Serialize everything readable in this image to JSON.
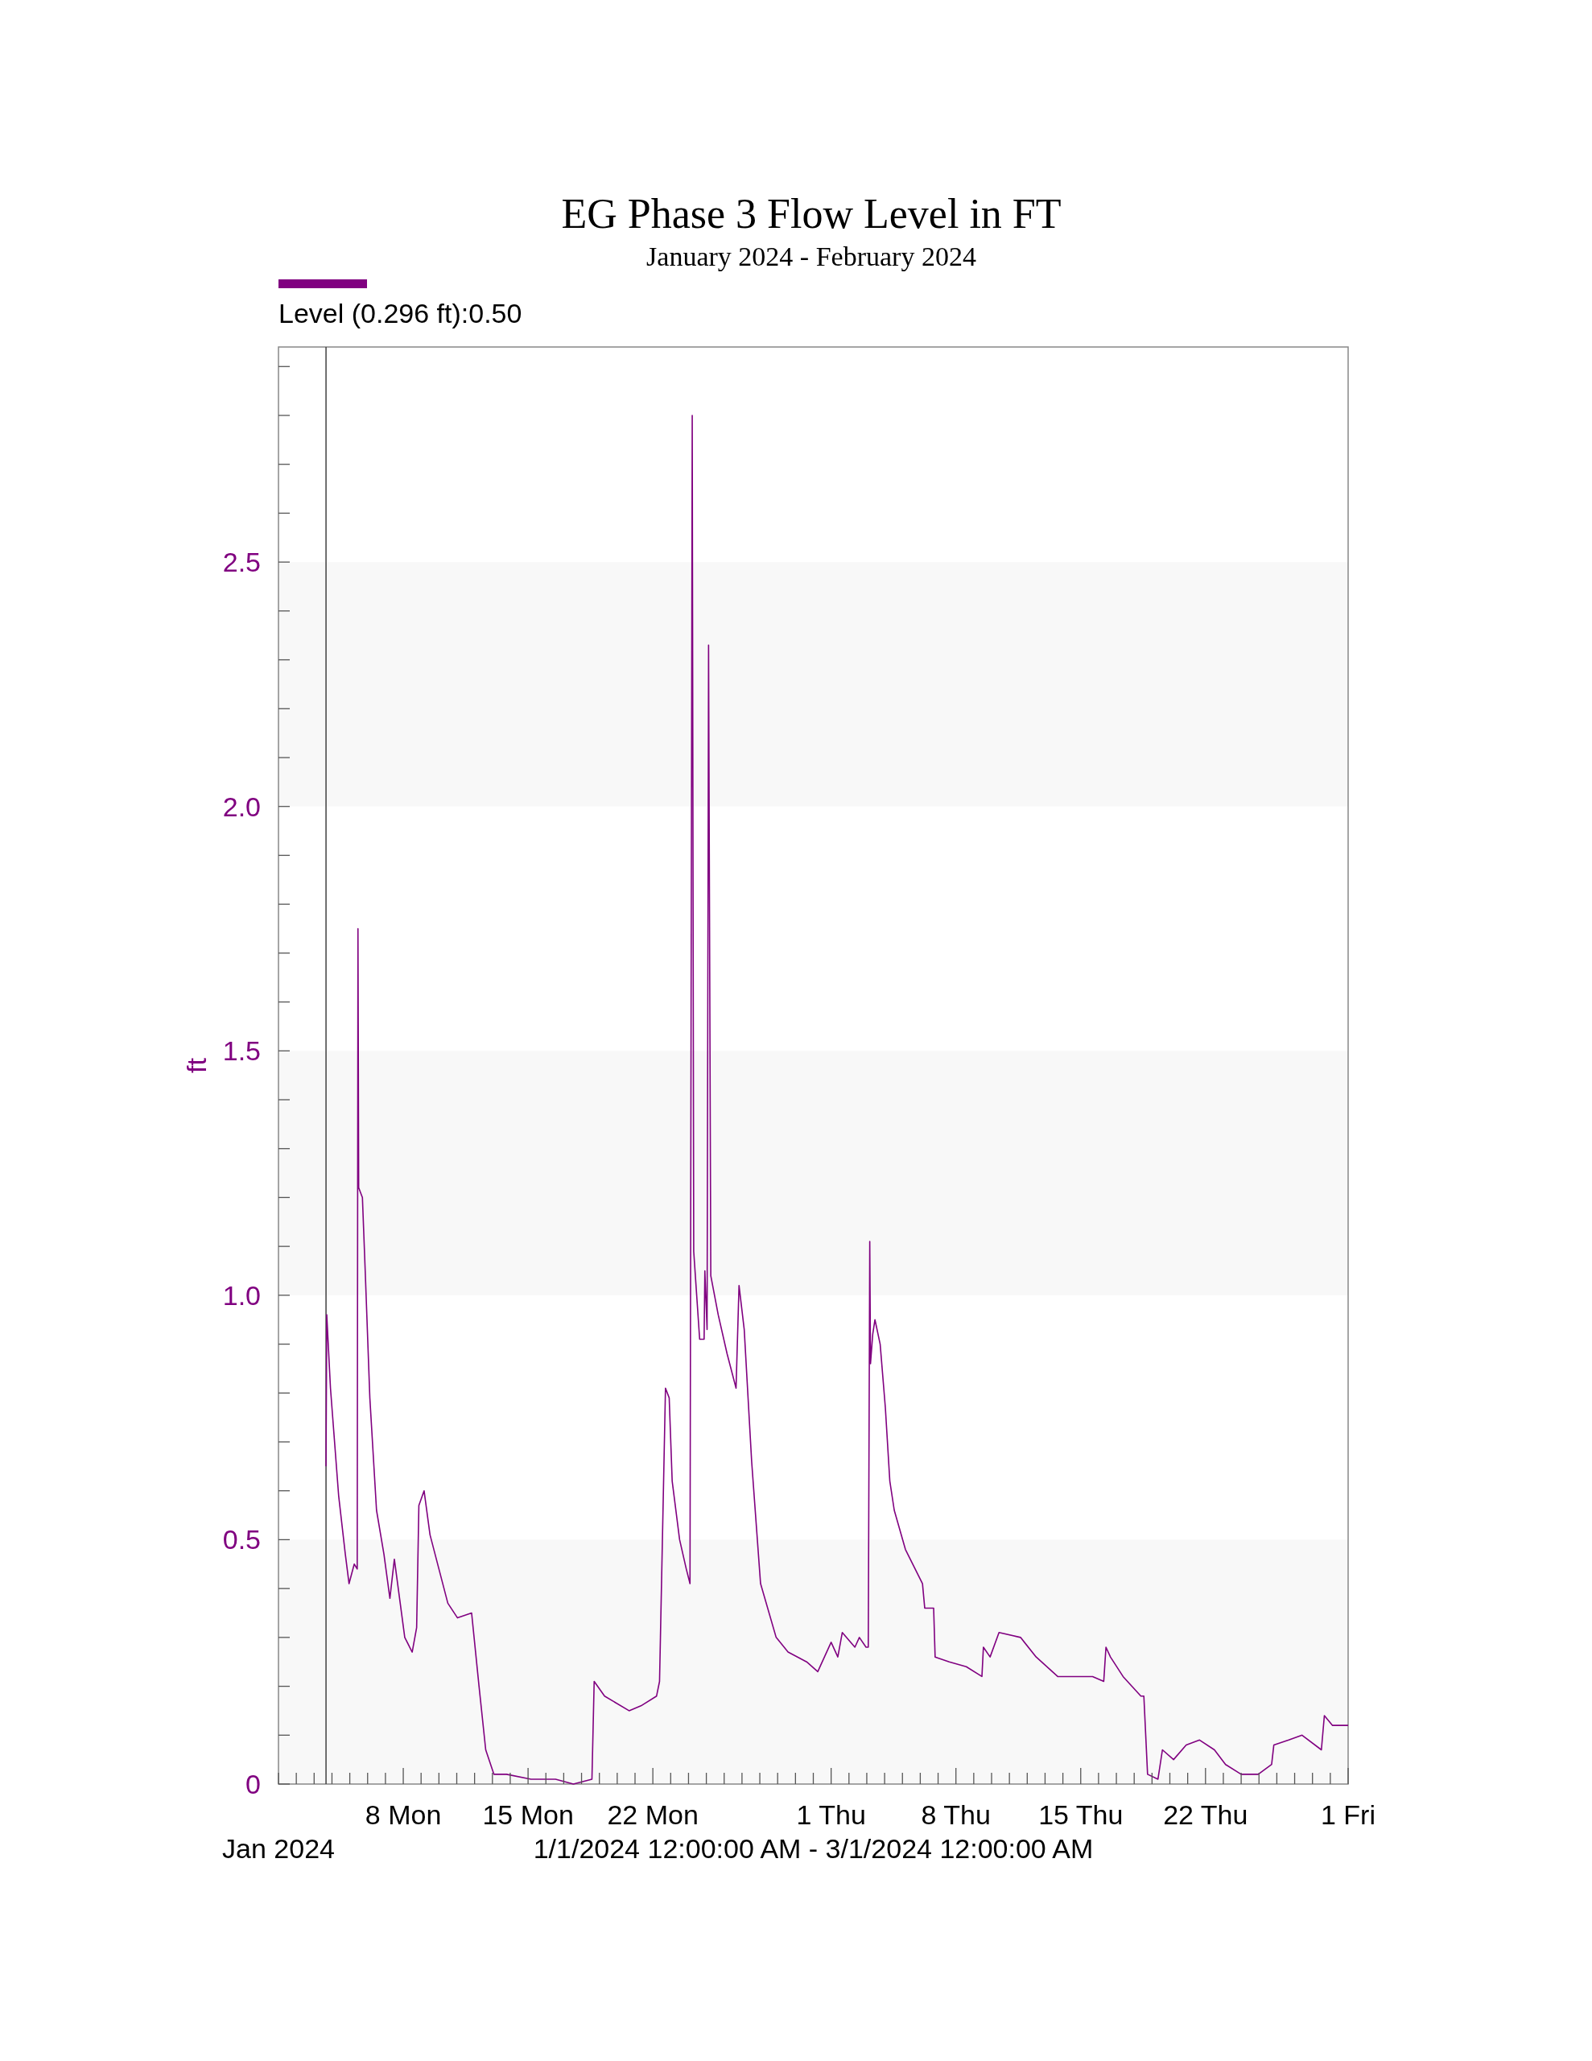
{
  "chart_data": {
    "type": "line",
    "title": "EG Phase 3 Flow Level in FT",
    "subtitle": "January 2024 - February 2024",
    "ylabel": "ft",
    "legend": "top left",
    "grid": false,
    "marker": "none",
    "line_style": "solid",
    "xlim": [
      "2024-01-01",
      "2024-03-01"
    ],
    "xticks": [
      {
        "value": "2024-01-01",
        "label": null
      },
      {
        "value": "2024-01-02",
        "label": null
      },
      {
        "value": "2024-01-03",
        "label": null
      },
      {
        "value": "2024-01-04",
        "label": null
      },
      {
        "value": "2024-01-05",
        "label": null
      },
      {
        "value": "2024-01-06",
        "label": null
      },
      {
        "value": "2024-01-07",
        "label": null
      },
      {
        "value": "2024-01-08",
        "label": "8 Mon"
      },
      {
        "value": "2024-01-09",
        "label": null
      },
      {
        "value": "2024-01-10",
        "label": null
      },
      {
        "value": "2024-01-11",
        "label": null
      },
      {
        "value": "2024-01-12",
        "label": null
      },
      {
        "value": "2024-01-13",
        "label": null
      },
      {
        "value": "2024-01-14",
        "label": null
      },
      {
        "value": "2024-01-15",
        "label": "15 Mon"
      },
      {
        "value": "2024-01-16",
        "label": null
      },
      {
        "value": "2024-01-17",
        "label": null
      },
      {
        "value": "2024-01-18",
        "label": null
      },
      {
        "value": "2024-01-19",
        "label": null
      },
      {
        "value": "2024-01-20",
        "label": null
      },
      {
        "value": "2024-01-21",
        "label": null
      },
      {
        "value": "2024-01-22",
        "label": "22 Mon"
      },
      {
        "value": "2024-01-23",
        "label": null
      },
      {
        "value": "2024-01-24",
        "label": null
      },
      {
        "value": "2024-01-25",
        "label": null
      },
      {
        "value": "2024-01-26",
        "label": null
      },
      {
        "value": "2024-01-27",
        "label": null
      },
      {
        "value": "2024-01-28",
        "label": null
      },
      {
        "value": "2024-01-29",
        "label": null
      },
      {
        "value": "2024-01-30",
        "label": null
      },
      {
        "value": "2024-01-31",
        "label": null
      },
      {
        "value": "2024-02-01",
        "label": "1 Thu"
      },
      {
        "value": "2024-02-02",
        "label": null
      },
      {
        "value": "2024-02-03",
        "label": null
      },
      {
        "value": "2024-02-04",
        "label": null
      },
      {
        "value": "2024-02-05",
        "label": null
      },
      {
        "value": "2024-02-06",
        "label": null
      },
      {
        "value": "2024-02-07",
        "label": null
      },
      {
        "value": "2024-02-08",
        "label": "8 Thu"
      },
      {
        "value": "2024-02-09",
        "label": null
      },
      {
        "value": "2024-02-10",
        "label": null
      },
      {
        "value": "2024-02-11",
        "label": null
      },
      {
        "value": "2024-02-12",
        "label": null
      },
      {
        "value": "2024-02-13",
        "label": null
      },
      {
        "value": "2024-02-14",
        "label": null
      },
      {
        "value": "2024-02-15",
        "label": "15 Thu"
      },
      {
        "value": "2024-02-16",
        "label": null
      },
      {
        "value": "2024-02-17",
        "label": null
      },
      {
        "value": "2024-02-18",
        "label": null
      },
      {
        "value": "2024-02-19",
        "label": null
      },
      {
        "value": "2024-02-20",
        "label": null
      },
      {
        "value": "2024-02-21",
        "label": null
      },
      {
        "value": "2024-02-22",
        "label": "22 Thu"
      },
      {
        "value": "2024-02-23",
        "label": null
      },
      {
        "value": "2024-02-24",
        "label": null
      },
      {
        "value": "2024-02-25",
        "label": null
      },
      {
        "value": "2024-02-26",
        "label": null
      },
      {
        "value": "2024-02-27",
        "label": null
      },
      {
        "value": "2024-02-28",
        "label": null
      },
      {
        "value": "2024-02-29",
        "label": null
      },
      {
        "value": "2024-03-01",
        "label": "1 Fri"
      }
    ],
    "ylim": [
      0,
      2.94
    ],
    "yticks": [
      0,
      {
        "value": 0.1,
        "label": null
      },
      {
        "value": 0.2,
        "label": null
      },
      {
        "value": 0.3,
        "label": null
      },
      {
        "value": 0.4,
        "label": null
      },
      0.5,
      {
        "value": 0.6,
        "label": null
      },
      {
        "value": 0.7,
        "label": null
      },
      {
        "value": 0.8,
        "label": null
      },
      {
        "value": 0.9,
        "label": null
      },
      {
        "value": 1,
        "label": "1.0"
      },
      {
        "value": 1.1,
        "label": null
      },
      {
        "value": 1.2,
        "label": null
      },
      {
        "value": 1.3,
        "label": null
      },
      {
        "value": 1.4,
        "label": null
      },
      1.5,
      {
        "value": 1.6,
        "label": null
      },
      {
        "value": 1.7,
        "label": null
      },
      {
        "value": 1.8,
        "label": null
      },
      {
        "value": 1.9,
        "label": null
      },
      {
        "value": 2,
        "label": "2.0"
      },
      {
        "value": 2.1,
        "label": null
      },
      {
        "value": 2.2,
        "label": null
      },
      {
        "value": 2.3,
        "label": null
      },
      {
        "value": 2.4,
        "label": null
      },
      2.5,
      {
        "value": 2.6,
        "label": null
      },
      {
        "value": 2.7,
        "label": null
      },
      {
        "value": 2.8,
        "label": null
      },
      {
        "value": 2.9,
        "label": null
      }
    ],
    "bands": [
      {
        "axis": "y",
        "from": 0,
        "to": 0.5,
        "color": "#f8f8f8"
      },
      {
        "axis": "y",
        "from": 1,
        "to": 1.5,
        "color": "#f8f8f8"
      },
      {
        "axis": "y",
        "from": 2,
        "to": 2.5,
        "color": "#f8f8f8"
      }
    ],
    "ref_lines": [
      {
        "axis": "x",
        "value": "2024-01-03T16:00",
        "color": "#404040",
        "line_style": "solid"
      }
    ],
    "annotations": [
      "Jan 2024",
      "1/1/2024 12:00:00 AM - 3/1/2024 12:00:00 AM"
    ],
    "series": [
      {
        "name": "Level (0.296 ft):0.50",
        "color": "#800080",
        "x": [
          "2024-01-03T16:00",
          "2024-01-03T17:00",
          "2024-01-03T22:00",
          "2024-01-04T09:00",
          "2024-01-04T18:00",
          "2024-01-04T23:00",
          "2024-01-05T06:00",
          "2024-01-05T10:00",
          "2024-01-05T11:00",
          "2024-01-05T12:00",
          "2024-01-05T17:00",
          "2024-01-05T21:00",
          "2024-01-06T03:00",
          "2024-01-06T12:00",
          "2024-01-06T22:00",
          "2024-01-07T06:00",
          "2024-01-07T12:00",
          "2024-01-08T02:00",
          "2024-01-08T12:00",
          "2024-01-08T18:00",
          "2024-01-08T21:00",
          "2024-01-09T04:00",
          "2024-01-09T12:00",
          "2024-01-10T00:00",
          "2024-01-10T12:00",
          "2024-01-11T01:00",
          "2024-01-11T20:00",
          "2024-01-12T06:00",
          "2024-01-12T15:00",
          "2024-01-13T02:00",
          "2024-01-13T19:00",
          "2024-01-15T04:00",
          "2024-01-16T13:00",
          "2024-01-17T13:00",
          "2024-01-18T14:00",
          "2024-01-18T17:00",
          "2024-01-19T07:00",
          "2024-01-20T16:00",
          "2024-01-21T08:00",
          "2024-01-22T05:00",
          "2024-01-22T09:00",
          "2024-01-22T17:00",
          "2024-01-22T22:00",
          "2024-01-23T02:00",
          "2024-01-23T12:00",
          "2024-01-23T21:00",
          "2024-01-24T02:00",
          "2024-01-24T05:00",
          "2024-01-24T07:00",
          "2024-01-24T15:00",
          "2024-01-24T21:00",
          "2024-01-24T22:00",
          "2024-01-25T01:00",
          "2024-01-25T03:00",
          "2024-01-25T06:00",
          "2024-01-25T16:00",
          "2024-01-26T04:00",
          "2024-01-26T16:00",
          "2024-01-26T20:00",
          "2024-01-27T03:00",
          "2024-01-27T13:00",
          "2024-01-28T01:00",
          "2024-01-28T22:00",
          "2024-01-29T14:00",
          "2024-01-30T15:00",
          "2024-01-31T06:00",
          "2024-01-31T15:00",
          "2024-02-01T00:00",
          "2024-02-01T09:00",
          "2024-02-01T15:00",
          "2024-02-02T08:00",
          "2024-02-02T14:00",
          "2024-02-02T23:00",
          "2024-02-03T02:00",
          "2024-02-03T04:00",
          "2024-02-03T05:00",
          "2024-02-03T08:00",
          "2024-02-03T11:00",
          "2024-02-03T18:00",
          "2024-02-04T01:00",
          "2024-02-04T07:00",
          "2024-02-04T13:00",
          "2024-02-05T04:00",
          "2024-02-06T03:00",
          "2024-02-06T06:00",
          "2024-02-06T18:00",
          "2024-02-06T20:00",
          "2024-02-07T15:00",
          "2024-02-08T14:00",
          "2024-02-09T11:00",
          "2024-02-09T13:00",
          "2024-02-09T22:00",
          "2024-02-10T10:00",
          "2024-02-11T15:00",
          "2024-02-12T12:00",
          "2024-02-13T17:00",
          "2024-02-14T17:00",
          "2024-02-15T16:00",
          "2024-02-16T07:00",
          "2024-02-16T10:00",
          "2024-02-16T16:00",
          "2024-02-17T09:00",
          "2024-02-18T09:00",
          "2024-02-18T13:00",
          "2024-02-18T18:00",
          "2024-02-19T08:00",
          "2024-02-19T14:00",
          "2024-02-20T05:00",
          "2024-02-20T22:00",
          "2024-02-21T16:00",
          "2024-02-22T12:00",
          "2024-02-23T03:00",
          "2024-02-24T00:00",
          "2024-02-24T23:00",
          "2024-02-25T17:00",
          "2024-02-25T20:00",
          "2024-02-26T16:00",
          "2024-02-27T10:00",
          "2024-02-28T12:00",
          "2024-02-28T16:00",
          "2024-02-29T03:00",
          "2024-03-01T00:00"
        ],
        "values": [
          0.65,
          0.96,
          0.81,
          0.59,
          0.47,
          0.41,
          0.45,
          0.44,
          1.75,
          1.22,
          1.2,
          1.04,
          0.79,
          0.56,
          0.47,
          0.38,
          0.46,
          0.3,
          0.27,
          0.32,
          0.57,
          0.6,
          0.51,
          0.44,
          0.37,
          0.34,
          0.35,
          0.2,
          0.07,
          0.02,
          0.02,
          0.01,
          0.01,
          0,
          0.01,
          0.21,
          0.18,
          0.15,
          0.16,
          0.18,
          0.21,
          0.81,
          0.79,
          0.62,
          0.5,
          0.44,
          0.41,
          2.8,
          1.09,
          0.91,
          0.91,
          1.05,
          0.93,
          2.33,
          1.04,
          0.96,
          0.88,
          0.81,
          1.02,
          0.93,
          0.66,
          0.41,
          0.3,
          0.27,
          0.25,
          0.23,
          0.26,
          0.29,
          0.26,
          0.31,
          0.28,
          0.3,
          0.28,
          0.28,
          1.11,
          0.86,
          0.92,
          0.95,
          0.9,
          0.77,
          0.62,
          0.56,
          0.48,
          0.41,
          0.36,
          0.36,
          0.26,
          0.25,
          0.24,
          0.22,
          0.28,
          0.26,
          0.31,
          0.3,
          0.26,
          0.22,
          0.22,
          0.22,
          0.21,
          0.28,
          0.26,
          0.22,
          0.18,
          0.18,
          0.02,
          0.01,
          0.07,
          0.05,
          0.08,
          0.09,
          0.07,
          0.04,
          0.02,
          0.02,
          0.04,
          0.08,
          0.09,
          0.1,
          0.07,
          0.14,
          0.12,
          0.12
        ]
      }
    ]
  }
}
